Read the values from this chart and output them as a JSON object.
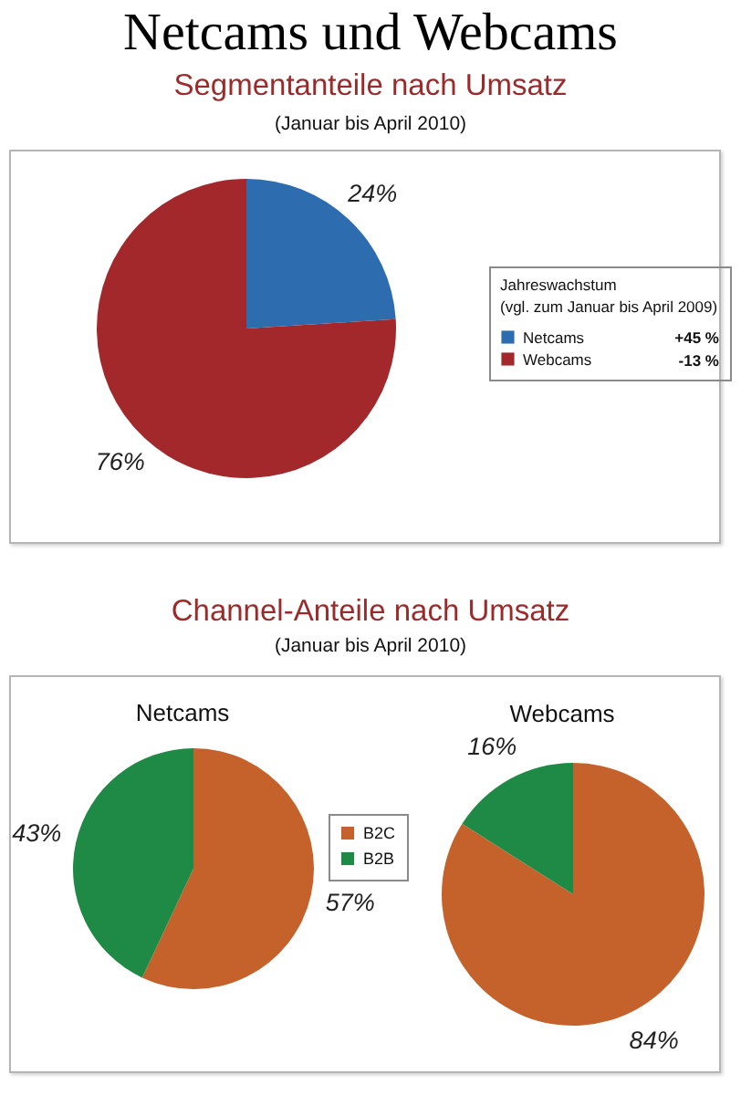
{
  "chart_data": [
    {
      "type": "pie",
      "title": "Netcams und Webcams",
      "subtitle": "Segmentanteile nach Umsatz",
      "legend_title": "Jahreswachstum",
      "annotations": [
        "(Januar bis April 2010)",
        "(vgl. zum Januar bis April 2009)",
        "+45 %",
        "-13 %"
      ],
      "categories": [
        "Netcams",
        "Webcams"
      ],
      "values": [
        24,
        76
      ],
      "colors": [
        "#2e6cb0",
        "#a3282b"
      ],
      "value_labels": [
        "24%",
        "76%"
      ],
      "legend": "right"
    },
    {
      "type": "pie",
      "title": "Netcams",
      "annotations": [
        "Channel-Anteile nach Umsatz",
        "(Januar bis April 2010)"
      ],
      "categories": [
        "B2C",
        "B2B"
      ],
      "values": [
        57,
        43
      ],
      "colors": [
        "#c5612b",
        "#1f8a45"
      ],
      "value_labels": [
        "57%",
        "43%"
      ],
      "legend": "right"
    },
    {
      "type": "pie",
      "title": "Webcams",
      "categories": [
        null,
        null
      ],
      "values": [
        84,
        16
      ],
      "colors": [
        "#c5612b",
        "#1f8a45"
      ],
      "value_labels": [
        "84%",
        "16%"
      ]
    }
  ]
}
